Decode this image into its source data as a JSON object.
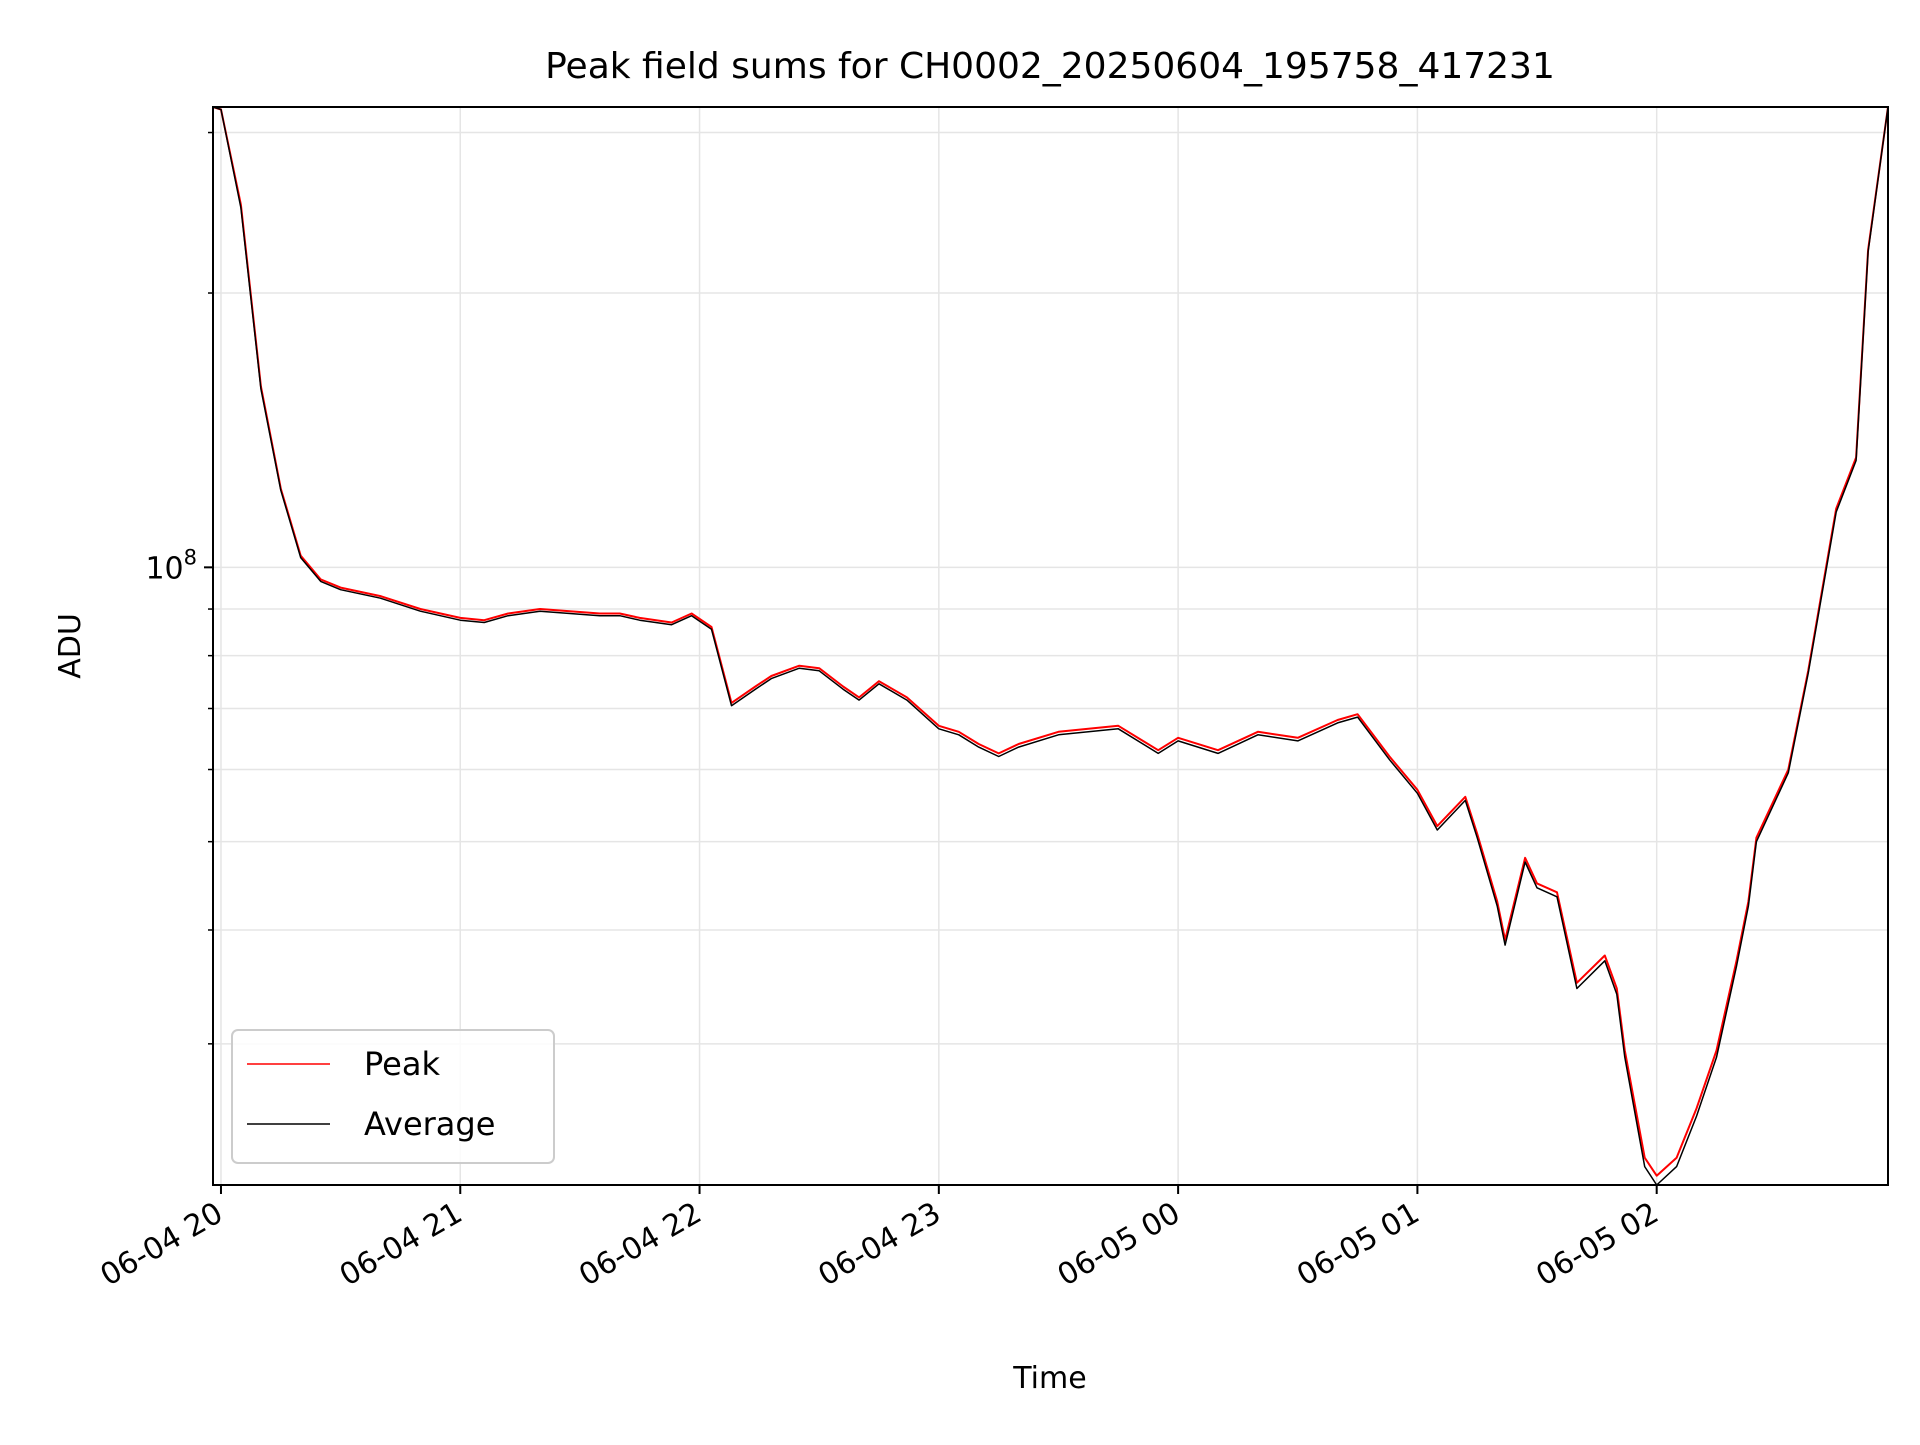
{
  "chart_data": {
    "type": "line",
    "title": "Peak field sums for CH0002_20250604_195758_417231",
    "xlabel": "Time",
    "ylabel": "ADU",
    "y_scale": "log",
    "y_tick_labels": [
      {
        "value": 100000000,
        "base": "10",
        "exponent": "8"
      }
    ],
    "ylim": [
      21000000,
      320000000
    ],
    "xlim": [
      "2025-06-04T19:58:00",
      "2025-06-05T02:58:00"
    ],
    "x_tick_labels": [
      "06-04 20",
      "06-04 21",
      "06-04 22",
      "06-04 23",
      "06-05 00",
      "06-05 01",
      "06-05 02"
    ],
    "x_ticks": [
      "2025-06-04T20:00",
      "2025-06-04T21:00",
      "2025-06-04T22:00",
      "2025-06-04T23:00",
      "2025-06-05T00:00",
      "2025-06-05T01:00",
      "2025-06-05T02:00"
    ],
    "grid": true,
    "legend": {
      "placement": "lower-left",
      "entries": [
        "Peak",
        "Average"
      ]
    },
    "series": [
      {
        "name": "Peak",
        "color": "#ff0000",
        "x": [
          "2025-06-04T19:58",
          "2025-06-04T20:00",
          "2025-06-04T20:05",
          "2025-06-04T20:10",
          "2025-06-04T20:15",
          "2025-06-04T20:20",
          "2025-06-04T20:25",
          "2025-06-04T20:30",
          "2025-06-04T20:40",
          "2025-06-04T20:50",
          "2025-06-04T21:00",
          "2025-06-04T21:06",
          "2025-06-04T21:12",
          "2025-06-04T21:20",
          "2025-06-04T21:35",
          "2025-06-04T21:40",
          "2025-06-04T21:45",
          "2025-06-04T21:53",
          "2025-06-04T21:58",
          "2025-06-04T22:03",
          "2025-06-04T22:08",
          "2025-06-04T22:14",
          "2025-06-04T22:18",
          "2025-06-04T22:25",
          "2025-06-04T22:30",
          "2025-06-04T22:36",
          "2025-06-04T22:40",
          "2025-06-04T22:45",
          "2025-06-04T22:52",
          "2025-06-04T23:00",
          "2025-06-04T23:05",
          "2025-06-04T23:10",
          "2025-06-04T23:15",
          "2025-06-04T23:20",
          "2025-06-04T23:30",
          "2025-06-04T23:45",
          "2025-06-04T23:55",
          "2025-06-05T00:00",
          "2025-06-05T00:10",
          "2025-06-05T00:20",
          "2025-06-05T00:30",
          "2025-06-05T00:40",
          "2025-06-05T00:45",
          "2025-06-05T00:53",
          "2025-06-05T01:00",
          "2025-06-05T01:05",
          "2025-06-05T01:12",
          "2025-06-05T01:15",
          "2025-06-05T01:20",
          "2025-06-05T01:22",
          "2025-06-05T01:27",
          "2025-06-05T01:30",
          "2025-06-05T01:35",
          "2025-06-05T01:40",
          "2025-06-05T01:47",
          "2025-06-05T01:50",
          "2025-06-05T01:52",
          "2025-06-05T01:57",
          "2025-06-05T02:00",
          "2025-06-05T02:05",
          "2025-06-05T02:10",
          "2025-06-05T02:15",
          "2025-06-05T02:20",
          "2025-06-05T02:23",
          "2025-06-05T02:25",
          "2025-06-05T02:33",
          "2025-06-05T02:38",
          "2025-06-05T02:45",
          "2025-06-05T02:50",
          "2025-06-05T02:53",
          "2025-06-05T02:58"
        ],
        "y": [
          320000000,
          318000000,
          250000000,
          158000000,
          122000000,
          103000000,
          97000000,
          95000000,
          93000000,
          90000000,
          88000000,
          87500000,
          89000000,
          90000000,
          89000000,
          89000000,
          88000000,
          87000000,
          89000000,
          86000000,
          71000000,
          74000000,
          76000000,
          78000000,
          77500000,
          74000000,
          72000000,
          75000000,
          72000000,
          67000000,
          66000000,
          64000000,
          62500000,
          64000000,
          66000000,
          67000000,
          63000000,
          65000000,
          63000000,
          66000000,
          65000000,
          68000000,
          69000000,
          62000000,
          57000000,
          52000000,
          56000000,
          51000000,
          43000000,
          39000000,
          48000000,
          45000000,
          44000000,
          35000000,
          37500000,
          34500000,
          29500000,
          22500000,
          21500000,
          22500000,
          25500000,
          29500000,
          37000000,
          43000000,
          50500000,
          60000000,
          77000000,
          116000000,
          132000000,
          223000000,
          320000000
        ]
      },
      {
        "name": "Average",
        "color": "#000000",
        "x": [
          "2025-06-04T19:58",
          "2025-06-04T20:00",
          "2025-06-04T20:05",
          "2025-06-04T20:10",
          "2025-06-04T20:15",
          "2025-06-04T20:20",
          "2025-06-04T20:25",
          "2025-06-04T20:30",
          "2025-06-04T20:40",
          "2025-06-04T20:50",
          "2025-06-04T21:00",
          "2025-06-04T21:06",
          "2025-06-04T21:12",
          "2025-06-04T21:20",
          "2025-06-04T21:35",
          "2025-06-04T21:40",
          "2025-06-04T21:45",
          "2025-06-04T21:53",
          "2025-06-04T21:58",
          "2025-06-04T22:03",
          "2025-06-04T22:08",
          "2025-06-04T22:14",
          "2025-06-04T22:18",
          "2025-06-04T22:25",
          "2025-06-04T22:30",
          "2025-06-04T22:36",
          "2025-06-04T22:40",
          "2025-06-04T22:45",
          "2025-06-04T22:52",
          "2025-06-04T23:00",
          "2025-06-04T23:05",
          "2025-06-04T23:10",
          "2025-06-04T23:15",
          "2025-06-04T23:20",
          "2025-06-04T23:30",
          "2025-06-04T23:45",
          "2025-06-04T23:55",
          "2025-06-05T00:00",
          "2025-06-05T00:10",
          "2025-06-05T00:20",
          "2025-06-05T00:30",
          "2025-06-05T00:40",
          "2025-06-05T00:45",
          "2025-06-05T00:53",
          "2025-06-05T01:00",
          "2025-06-05T01:05",
          "2025-06-05T01:12",
          "2025-06-05T01:15",
          "2025-06-05T01:20",
          "2025-06-05T01:22",
          "2025-06-05T01:27",
          "2025-06-05T01:30",
          "2025-06-05T01:35",
          "2025-06-05T01:40",
          "2025-06-05T01:47",
          "2025-06-05T01:50",
          "2025-06-05T01:52",
          "2025-06-05T01:57",
          "2025-06-05T02:00",
          "2025-06-05T02:05",
          "2025-06-05T02:10",
          "2025-06-05T02:15",
          "2025-06-05T02:20",
          "2025-06-05T02:23",
          "2025-06-05T02:25",
          "2025-06-05T02:33",
          "2025-06-05T02:38",
          "2025-06-05T02:45",
          "2025-06-05T02:50",
          "2025-06-05T02:53",
          "2025-06-05T02:58"
        ],
        "y": [
          320000000,
          318000000,
          248000000,
          157000000,
          121500000,
          102500000,
          96500000,
          94500000,
          92500000,
          89500000,
          87500000,
          87000000,
          88500000,
          89500000,
          88500000,
          88500000,
          87500000,
          86500000,
          88500000,
          85500000,
          70500000,
          73500000,
          75500000,
          77500000,
          77000000,
          73500000,
          71500000,
          74500000,
          71500000,
          66500000,
          65500000,
          63500000,
          62000000,
          63500000,
          65500000,
          66500000,
          62500000,
          64500000,
          62500000,
          65500000,
          64500000,
          67500000,
          68500000,
          61500000,
          56500000,
          51500000,
          55500000,
          50500000,
          42500000,
          38500000,
          47500000,
          44500000,
          43500000,
          34500000,
          37000000,
          34000000,
          29000000,
          22000000,
          21000000,
          22000000,
          25000000,
          29000000,
          36500000,
          42500000,
          50000000,
          59500000,
          76500000,
          115000000,
          131000000,
          222000000,
          320000000
        ]
      }
    ]
  }
}
